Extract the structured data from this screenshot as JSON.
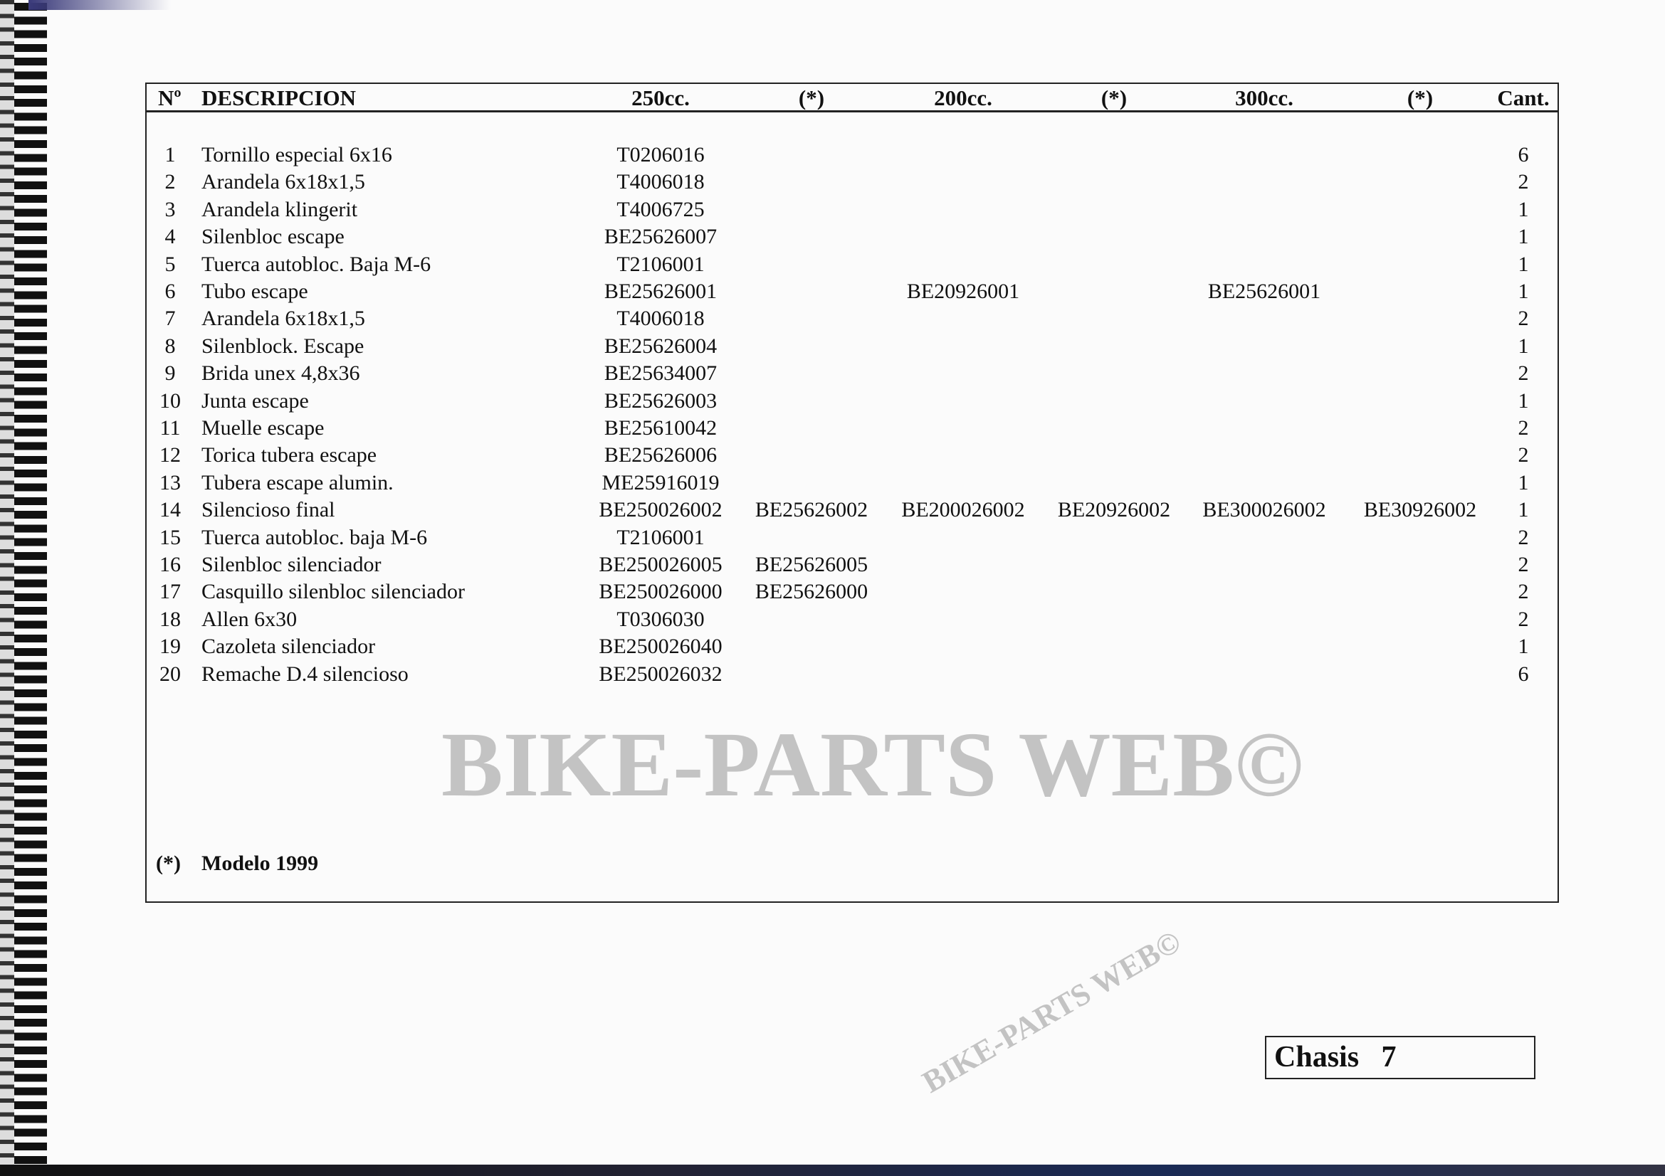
{
  "header": {
    "num": "Nº",
    "description": "DESCRIPCION",
    "col_250": "250cc.",
    "col_250_star": "(*)",
    "col_200": "200cc.",
    "col_200_star": "(*)",
    "col_300": "300cc.",
    "col_300_star": "(*)",
    "qty": "Cant."
  },
  "rows": [
    {
      "n": "1",
      "desc": "Tornillo especial 6x16",
      "p250": "T0206016",
      "p250s": "",
      "p200": "",
      "p200s": "",
      "p300": "",
      "p300s": "",
      "qty": "6"
    },
    {
      "n": "2",
      "desc": "Arandela 6x18x1,5",
      "p250": "T4006018",
      "p250s": "",
      "p200": "",
      "p200s": "",
      "p300": "",
      "p300s": "",
      "qty": "2"
    },
    {
      "n": "3",
      "desc": "Arandela klingerit",
      "p250": "T4006725",
      "p250s": "",
      "p200": "",
      "p200s": "",
      "p300": "",
      "p300s": "",
      "qty": "1"
    },
    {
      "n": "4",
      "desc": "Silenbloc escape",
      "p250": "BE25626007",
      "p250s": "",
      "p200": "",
      "p200s": "",
      "p300": "",
      "p300s": "",
      "qty": "1"
    },
    {
      "n": "5",
      "desc": "Tuerca autobloc. Baja M-6",
      "p250": "T2106001",
      "p250s": "",
      "p200": "",
      "p200s": "",
      "p300": "",
      "p300s": "",
      "qty": "1"
    },
    {
      "n": "6",
      "desc": "Tubo escape",
      "p250": "BE25626001",
      "p250s": "",
      "p200": "BE20926001",
      "p200s": "",
      "p300": "BE25626001",
      "p300s": "",
      "qty": "1"
    },
    {
      "n": "7",
      "desc": "Arandela 6x18x1,5",
      "p250": "T4006018",
      "p250s": "",
      "p200": "",
      "p200s": "",
      "p300": "",
      "p300s": "",
      "qty": "2"
    },
    {
      "n": "8",
      "desc": "Silenblock. Escape",
      "p250": "BE25626004",
      "p250s": "",
      "p200": "",
      "p200s": "",
      "p300": "",
      "p300s": "",
      "qty": "1"
    },
    {
      "n": "9",
      "desc": "Brida unex  4,8x36",
      "p250": "BE25634007",
      "p250s": "",
      "p200": "",
      "p200s": "",
      "p300": "",
      "p300s": "",
      "qty": "2"
    },
    {
      "n": "10",
      "desc": "Junta escape",
      "p250": "BE25626003",
      "p250s": "",
      "p200": "",
      "p200s": "",
      "p300": "",
      "p300s": "",
      "qty": "1"
    },
    {
      "n": "11",
      "desc": "Muelle escape",
      "p250": "BE25610042",
      "p250s": "",
      "p200": "",
      "p200s": "",
      "p300": "",
      "p300s": "",
      "qty": "2"
    },
    {
      "n": "12",
      "desc": "Torica tubera escape",
      "p250": "BE25626006",
      "p250s": "",
      "p200": "",
      "p200s": "",
      "p300": "",
      "p300s": "",
      "qty": "2"
    },
    {
      "n": "13",
      "desc": "Tubera escape alumin.",
      "p250": "ME25916019",
      "p250s": "",
      "p200": "",
      "p200s": "",
      "p300": "",
      "p300s": "",
      "qty": "1"
    },
    {
      "n": "14",
      "desc": "Silencioso final",
      "p250": "BE250026002",
      "p250s": "BE25626002",
      "p200": "BE200026002",
      "p200s": "BE20926002",
      "p300": "BE300026002",
      "p300s": "BE30926002",
      "qty": "1"
    },
    {
      "n": "15",
      "desc": "Tuerca autobloc. baja M-6",
      "p250": "T2106001",
      "p250s": "",
      "p200": "",
      "p200s": "",
      "p300": "",
      "p300s": "",
      "qty": "2"
    },
    {
      "n": "16",
      "desc": "Silenbloc silenciador",
      "p250": "BE250026005",
      "p250s": "BE25626005",
      "p200": "",
      "p200s": "",
      "p300": "",
      "p300s": "",
      "qty": "2"
    },
    {
      "n": "17",
      "desc": "Casquillo silenbloc silenciador",
      "p250": "BE250026000",
      "p250s": "BE25626000",
      "p200": "",
      "p200s": "",
      "p300": "",
      "p300s": "",
      "qty": "2"
    },
    {
      "n": "18",
      "desc": "Allen 6x30",
      "p250": "T0306030",
      "p250s": "",
      "p200": "",
      "p200s": "",
      "p300": "",
      "p300s": "",
      "qty": "2"
    },
    {
      "n": "19",
      "desc": "Cazoleta silenciador",
      "p250": "BE250026040",
      "p250s": "",
      "p200": "",
      "p200s": "",
      "p300": "",
      "p300s": "",
      "qty": "1"
    },
    {
      "n": "20",
      "desc": "Remache D.4 silencioso",
      "p250": "BE250026032",
      "p250s": "",
      "p200": "",
      "p200s": "",
      "p300": "",
      "p300s": "",
      "qty": "6"
    }
  ],
  "footnote": {
    "marker": "(*)",
    "text": "Modelo 1999"
  },
  "section": {
    "label": "Chasis   7"
  },
  "watermark": {
    "main": "BIKE-PARTS WEB©",
    "small": "BIKE-PARTS WEB©"
  }
}
